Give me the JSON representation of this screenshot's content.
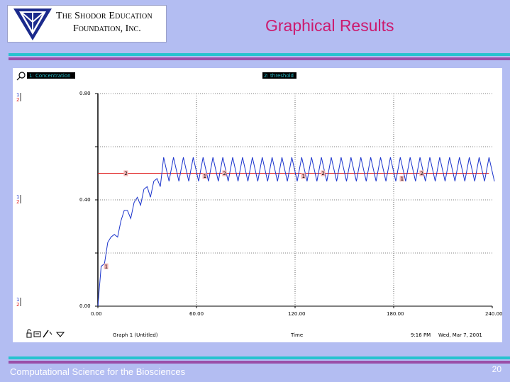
{
  "logo": {
    "line1": "The Shodor Education",
    "line2": "Foundation, Inc."
  },
  "slide": {
    "title": "Graphical Results",
    "footer": "Computational Science for the Biosciences",
    "page_number": "20"
  },
  "colors": {
    "background": "#b3bdf2",
    "title": "#cc1a6e",
    "series1": "#1a33cc",
    "series2": "#e02020",
    "teal_bar": "#27c3cf",
    "purple_bar": "#9a4fa8"
  },
  "graph": {
    "legend1": "1: Concentration",
    "legend2": "2: threshold",
    "scale_markers": [
      "1",
      "2"
    ],
    "graph_name": "Graph 1 (Untitled)",
    "x_title": "Time",
    "time": "9:16 PM",
    "date": "Wed, Mar 7, 2001",
    "toolbar_icons": [
      "lock-icon",
      "print-icon",
      "edit-icon",
      "dropdown-icon"
    ]
  },
  "chart_data": {
    "type": "line",
    "xlabel": "Time",
    "ylabel": "",
    "xlim": [
      0,
      240
    ],
    "ylim": [
      0,
      0.8
    ],
    "x_ticks": [
      "0.00",
      "60.00",
      "120.00",
      "180.00",
      "240.00"
    ],
    "y_ticks": [
      "0.00",
      "0.40",
      "0.80"
    ],
    "grid": true,
    "series": [
      {
        "name": "1: Concentration",
        "color": "#1a33cc",
        "description_points": [
          [
            0,
            0.0
          ],
          [
            2,
            0.15
          ],
          [
            4,
            0.16
          ],
          [
            6,
            0.24
          ],
          [
            8,
            0.26
          ],
          [
            10,
            0.27
          ],
          [
            12,
            0.26
          ],
          [
            14,
            0.32
          ],
          [
            16,
            0.36
          ],
          [
            18,
            0.36
          ],
          [
            20,
            0.33
          ],
          [
            22,
            0.39
          ],
          [
            24,
            0.41
          ],
          [
            26,
            0.38
          ],
          [
            28,
            0.44
          ],
          [
            30,
            0.45
          ],
          [
            32,
            0.41
          ],
          [
            34,
            0.47
          ],
          [
            36,
            0.48
          ],
          [
            38,
            0.45
          ]
        ],
        "steady_state": {
          "min": 0.47,
          "max": 0.56,
          "period": 6,
          "start": 40,
          "end": 238
        }
      },
      {
        "name": "2: threshold",
        "color": "#e02020",
        "x": [
          0,
          238
        ],
        "values": [
          0.5,
          0.5
        ]
      }
    ]
  }
}
